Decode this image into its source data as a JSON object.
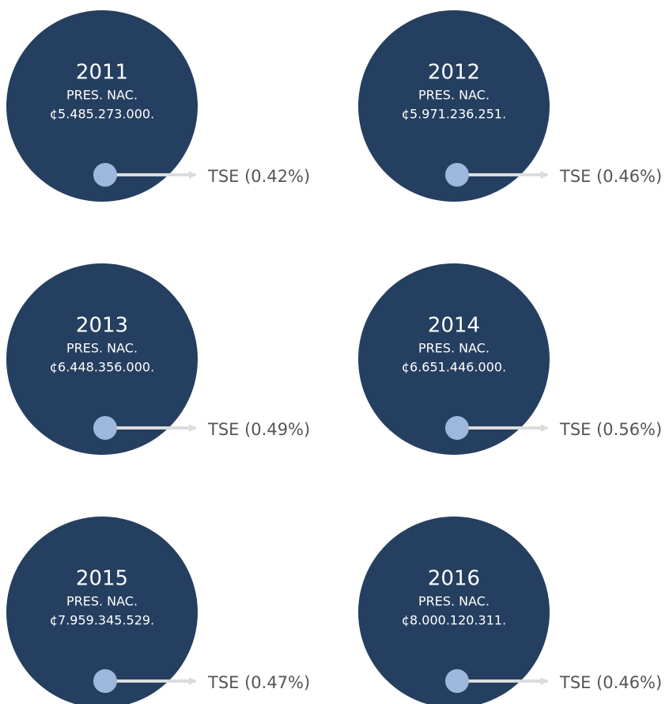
{
  "items": [
    {
      "year": "2011",
      "label": "PRES. NAC.",
      "amount": "¢5.485.273.000.",
      "tse": "TSE (0.42%)"
    },
    {
      "year": "2012",
      "label": "PRES. NAC.",
      "amount": "¢5.971.236.251.",
      "tse": "TSE (0.46%)"
    },
    {
      "year": "2013",
      "label": "PRES. NAC.",
      "amount": "¢6.448.356.000.",
      "tse": "TSE (0.49%)"
    },
    {
      "year": "2014",
      "label": "PRES. NAC.",
      "amount": "¢6.651.446.000.",
      "tse": "TSE (0.56%)"
    },
    {
      "year": "2015",
      "label": "PRES. NAC.",
      "amount": "¢7.959.345.529.",
      "tse": "TSE (0.47%)"
    },
    {
      "year": "2016",
      "label": "PRES. NAC.",
      "amount": "¢8.000.120.311.",
      "tse": "TSE (0.46%)"
    }
  ]
}
